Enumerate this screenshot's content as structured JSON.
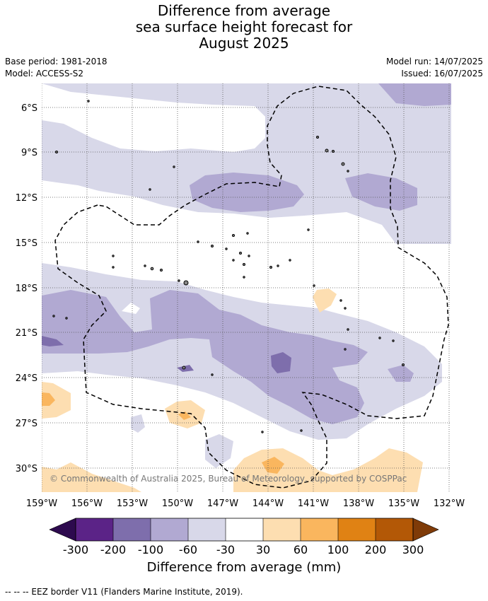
{
  "title": {
    "line1": "Difference from average",
    "line2": "sea surface height forecast for",
    "line3": "August 2025"
  },
  "meta": {
    "base_period": "Base period: 1981-2018",
    "model": "Model: ACCESS-S2",
    "model_run": "Model run: 14/07/2025",
    "issued": "Issued: 16/07/2025"
  },
  "map": {
    "region": "Southwest Pacific (Cook Islands / French Polynesia area)",
    "lon_ticks": [
      "159°W",
      "156°W",
      "153°W",
      "150°W",
      "147°W",
      "144°W",
      "141°W",
      "138°W",
      "135°W",
      "132°W"
    ],
    "lat_ticks": [
      "6°S",
      "9°S",
      "12°S",
      "15°S",
      "18°S",
      "21°S",
      "24°S",
      "27°S",
      "30°S"
    ],
    "copyright": "© Commonwealth of Australia 2025, Bureau of Meteorology, supported by COSPPac",
    "colors": {
      "m300": "#2d0a4e",
      "m200": "#5b2387",
      "m100": "#7e6eac",
      "m60": "#b1a9d2",
      "m30": "#d8d8e9",
      "zero": "#ffffff",
      "p30": "#fddeb1",
      "p60": "#fab65e",
      "p100": "#e08214",
      "p200": "#b35806",
      "p300": "#7f3b08"
    }
  },
  "colorbar": {
    "labels": [
      "-300",
      "-200",
      "-100",
      "-60",
      "-30",
      "30",
      "60",
      "100",
      "200",
      "300"
    ],
    "title": "Difference from average (mm)"
  },
  "footnote": "--  --  -- EEZ border V11 (Flanders Marine Institute, 2019)."
}
